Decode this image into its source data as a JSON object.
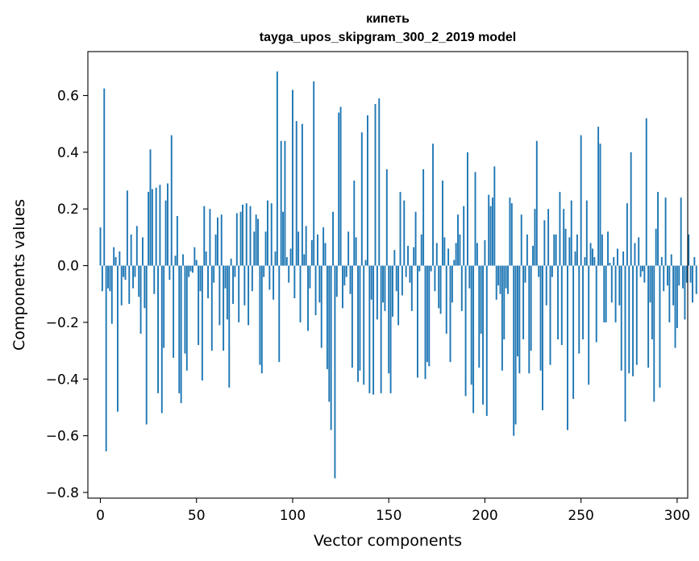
{
  "chart_data": {
    "type": "bar",
    "title": "кипеть",
    "subtitle": "tayga_upos_skipgram_300_2_2019 model",
    "xlabel": "Vector components",
    "ylabel": "Components values",
    "xlim": [
      -6.5,
      305.5
    ],
    "ylim": [
      -0.82,
      0.755
    ],
    "xticks": [
      0,
      50,
      100,
      150,
      200,
      250,
      300
    ],
    "yticks": [
      -0.8,
      -0.6,
      -0.4,
      -0.2,
      0.0,
      0.2,
      0.4,
      0.6
    ],
    "ytick_labels": [
      "−0.8",
      "−0.6",
      "−0.4",
      "−0.2",
      "0.0",
      "0.2",
      "0.4",
      "0.6"
    ],
    "xtick_labels": [
      "0",
      "50",
      "100",
      "150",
      "200",
      "250",
      "300"
    ],
    "bar_color": "#1f77b4",
    "values": [
      0.135,
      -0.09,
      0.625,
      -0.655,
      -0.08,
      -0.09,
      -0.205,
      0.065,
      0.03,
      -0.515,
      0.05,
      -0.14,
      -0.04,
      -0.05,
      0.265,
      -0.135,
      0.11,
      -0.08,
      -0.04,
      0.14,
      -0.11,
      -0.24,
      0.1,
      -0.15,
      -0.56,
      0.26,
      0.41,
      0.27,
      -0.1,
      0.275,
      -0.45,
      0.285,
      -0.52,
      -0.29,
      0.23,
      0.29,
      -0.05,
      0.46,
      -0.325,
      0.035,
      0.175,
      -0.45,
      -0.485,
      0.04,
      -0.31,
      -0.37,
      -0.04,
      -0.02,
      -0.025,
      0.065,
      0.02,
      -0.28,
      -0.09,
      -0.405,
      0.21,
      0.05,
      -0.115,
      0.2,
      -0.3,
      -0.06,
      0.11,
      0.17,
      -0.21,
      0.18,
      -0.3,
      -0.08,
      -0.19,
      -0.43,
      0.025,
      -0.135,
      -0.04,
      0.185,
      -0.2,
      0.19,
      0.215,
      -0.14,
      0.22,
      -0.21,
      0.21,
      -0.09,
      0.12,
      0.18,
      0.165,
      -0.35,
      -0.38,
      -0.04,
      0.12,
      0.23,
      -0.085,
      0.22,
      -0.12,
      0.05,
      0.685,
      -0.34,
      0.44,
      0.19,
      0.44,
      0.03,
      -0.06,
      0.06,
      0.62,
      -0.115,
      0.51,
      0.12,
      -0.2,
      0.5,
      0.04,
      0.14,
      -0.23,
      -0.08,
      0.09,
      0.65,
      -0.175,
      0.11,
      -0.13,
      -0.29,
      0.135,
      0.08,
      -0.365,
      -0.48,
      -0.58,
      0.19,
      -0.75,
      -0.11,
      0.54,
      0.56,
      -0.15,
      -0.07,
      -0.04,
      0.12,
      -0.1,
      -0.36,
      0.3,
      0.1,
      -0.41,
      -0.37,
      0.47,
      -0.42,
      0.02,
      0.53,
      -0.45,
      -0.12,
      -0.455,
      0.57,
      -0.19,
      0.59,
      -0.45,
      -0.13,
      -0.16,
      0.34,
      -0.38,
      -0.45,
      -0.18,
      0.055,
      -0.09,
      -0.21,
      0.26,
      -0.105,
      0.23,
      -0.04,
      0.07,
      -0.06,
      -0.16,
      0.065,
      0.19,
      -0.395,
      -0.02,
      0.11,
      0.34,
      -0.4,
      -0.34,
      -0.355,
      -0.02,
      0.43,
      -0.09,
      0.08,
      -0.15,
      -0.17,
      0.3,
      0.1,
      -0.24,
      0.06,
      -0.34,
      -0.13,
      0.02,
      0.08,
      0.18,
      0.11,
      -0.16,
      0.21,
      -0.46,
      0.4,
      -0.08,
      -0.42,
      -0.52,
      0.33,
      0.08,
      -0.36,
      -0.24,
      -0.49,
      0.09,
      -0.53,
      0.25,
      0.21,
      0.24,
      0.35,
      -0.12,
      -0.07,
      -0.1,
      -0.37,
      -0.26,
      -0.08,
      -0.1,
      0.24,
      0.22,
      -0.6,
      -0.56,
      -0.32,
      -0.38,
      0.18,
      -0.26,
      -0.06,
      0.11,
      -0.38,
      -0.3,
      0.07,
      0.2,
      0.44,
      -0.04,
      -0.37,
      -0.51,
      0.16,
      -0.14,
      0.2,
      -0.35,
      -0.04,
      0.11,
      0.11,
      -0.26,
      0.26,
      -0.28,
      0.2,
      0.13,
      -0.58,
      0.1,
      0.23,
      -0.47,
      0.05,
      0.11,
      -0.31,
      0.46,
      -0.26,
      0.03,
      0.23,
      -0.42,
      0.08,
      0.06,
      0.03,
      -0.27,
      0.49,
      0.43,
      0.11,
      -0.2,
      -0.2,
      0.12,
      0.01,
      -0.13,
      0.03,
      -0.2,
      0.06,
      -0.14,
      -0.37,
      0.05,
      -0.55,
      0.22,
      -0.38,
      0.4,
      -0.39,
      0.08,
      -0.35,
      0.1,
      -0.04,
      -0.02,
      -0.06,
      0.52,
      -0.36,
      -0.13,
      -0.26,
      -0.48,
      0.13,
      0.26,
      -0.43,
      0.03,
      -0.09,
      0.24,
      -0.07,
      -0.2,
      0.04,
      -0.14,
      -0.29,
      -0.22,
      -0.07,
      0.24,
      -0.08,
      -0.19,
      -0.06,
      0.11,
      -0.06,
      -0.13,
      0.03,
      -0.1
    ]
  }
}
